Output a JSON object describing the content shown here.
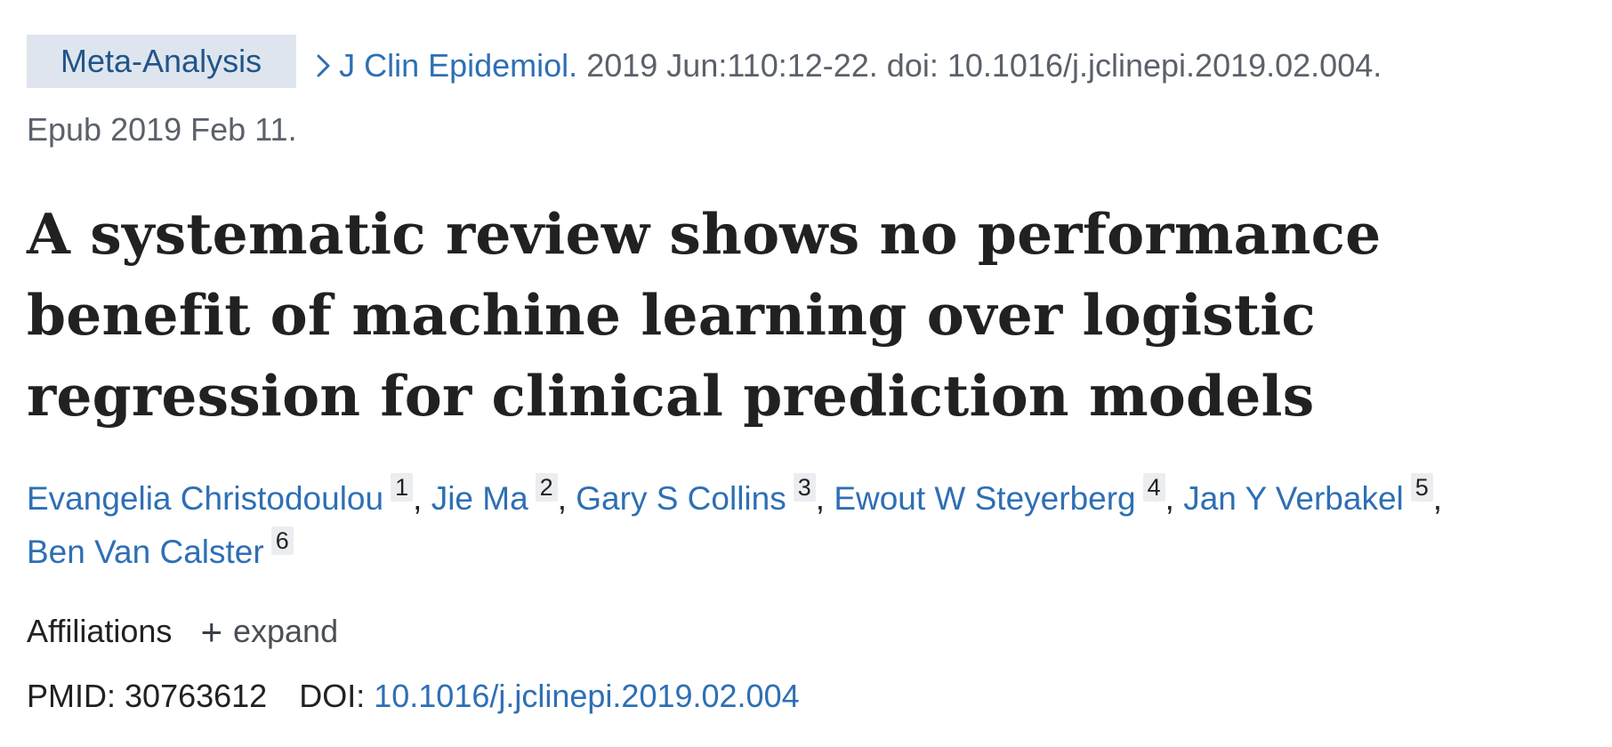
{
  "citation": {
    "badge": "Meta-Analysis",
    "journal": "J Clin Epidemiol.",
    "details": "2019 Jun:110:12-22. doi: 10.1016/j.jclinepi.2019.02.004.",
    "epub": "Epub 2019 Feb 11."
  },
  "title": "A systematic review shows no performance benefit of machine learning over logistic regression for clinical prediction models",
  "authors": [
    {
      "name": "Evangelia Christodoulou",
      "aff": "1"
    },
    {
      "name": "Jie Ma",
      "aff": "2"
    },
    {
      "name": "Gary S Collins",
      "aff": "3"
    },
    {
      "name": "Ewout W Steyerberg",
      "aff": "4"
    },
    {
      "name": "Jan Y Verbakel",
      "aff": "5"
    },
    {
      "name": "Ben Van Calster",
      "aff": "6"
    }
  ],
  "affiliations": {
    "label": "Affiliations",
    "expand_label": "expand",
    "expand_icon": "plus-icon"
  },
  "ids": {
    "pmid_label": "PMID:",
    "pmid": "30763612",
    "doi_label": "DOI:",
    "doi": "10.1016/j.jclinepi.2019.02.004"
  },
  "colors": {
    "link": "#2e6fb4",
    "badge_bg": "#dfe5ee",
    "badge_text": "#20558a",
    "muted": "#5b616b"
  }
}
